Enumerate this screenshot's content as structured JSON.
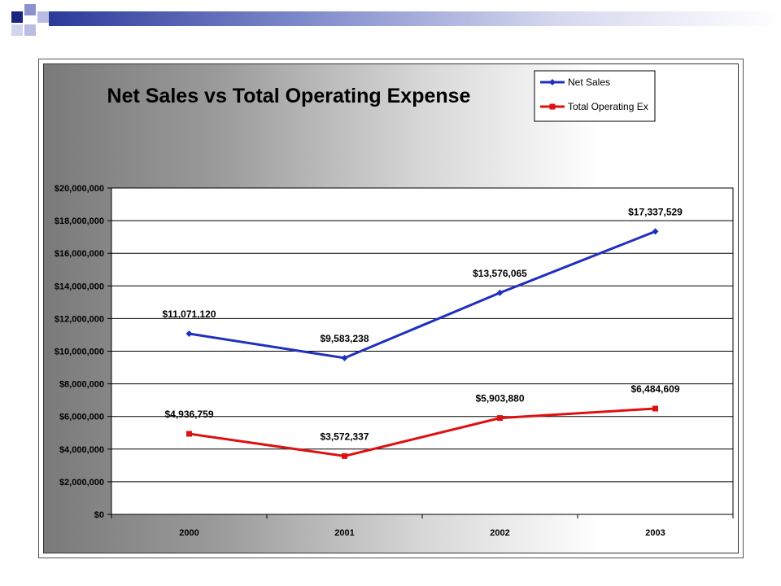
{
  "chart_data": {
    "type": "line",
    "title": "Net Sales vs Total Operating Expense",
    "categories": [
      "2000",
      "2001",
      "2002",
      "2003"
    ],
    "series": [
      {
        "name": "Net Sales",
        "values": [
          11071120,
          9583238,
          13576065,
          17337529
        ],
        "labels": [
          "$11,071,120",
          "$9,583,238",
          "$13,576,065",
          "$17,337,529"
        ],
        "color": "#1f2fc0"
      },
      {
        "name": "Total Operating Ex",
        "values": [
          4936759,
          3572337,
          5903880,
          6484609
        ],
        "labels": [
          "$4,936,759",
          "$3,572,337",
          "$5,903,880",
          "$6,484,609"
        ],
        "color": "#dd1111"
      }
    ],
    "ylim": [
      0,
      20000000
    ],
    "yticks": [
      "$0",
      "$2,000,000",
      "$4,000,000",
      "$6,000,000",
      "$8,000,000",
      "$10,000,000",
      "$12,000,000",
      "$14,000,000",
      "$16,000,000",
      "$18,000,000",
      "$20,000,000"
    ],
    "grid": true,
    "legend": "top-right"
  }
}
